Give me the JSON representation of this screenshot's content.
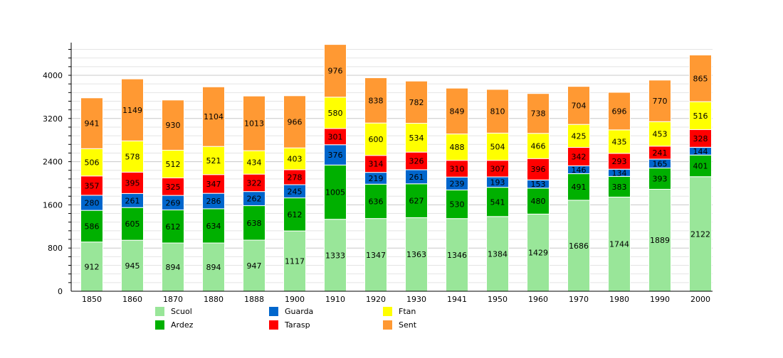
{
  "chart_data": {
    "type": "bar",
    "stacked": true,
    "categories": [
      "1850",
      "1860",
      "1870",
      "1880",
      "1888",
      "1900",
      "1910",
      "1920",
      "1930",
      "1941",
      "1950",
      "1960",
      "1970",
      "1980",
      "1990",
      "2000"
    ],
    "series": [
      {
        "name": "Scuol",
        "color": "#99e699",
        "values": [
          912,
          945,
          894,
          894,
          947,
          1117,
          1333,
          1347,
          1363,
          1346,
          1384,
          1429,
          1686,
          1744,
          1889,
          2122
        ]
      },
      {
        "name": "Ardez",
        "color": "#00b000",
        "values": [
          586,
          605,
          612,
          634,
          638,
          612,
          1005,
          636,
          627,
          530,
          541,
          480,
          491,
          383,
          393,
          401
        ]
      },
      {
        "name": "Guarda",
        "color": "#0066cc",
        "values": [
          280,
          261,
          269,
          286,
          262,
          245,
          376,
          219,
          261,
          239,
          193,
          153,
          146,
          134,
          165,
          144
        ]
      },
      {
        "name": "Tarasp",
        "color": "#ff0000",
        "values": [
          357,
          395,
          325,
          347,
          322,
          278,
          301,
          314,
          326,
          310,
          307,
          396,
          342,
          293,
          241,
          328
        ]
      },
      {
        "name": "Ftan",
        "color": "#ffff00",
        "values": [
          506,
          578,
          512,
          521,
          434,
          403,
          580,
          600,
          534,
          488,
          504,
          466,
          425,
          435,
          453,
          516
        ]
      },
      {
        "name": "Sent",
        "color": "#ff9933",
        "values": [
          941,
          1149,
          930,
          1104,
          1013,
          966,
          976,
          838,
          782,
          849,
          810,
          738,
          704,
          696,
          770,
          865
        ]
      }
    ],
    "yticks": [
      "0",
      "800",
      "1600",
      "2400",
      "3200",
      "4000"
    ],
    "ylim": [
      0,
      4600
    ],
    "grid": true,
    "data_labels": true,
    "legend": "bottom"
  }
}
